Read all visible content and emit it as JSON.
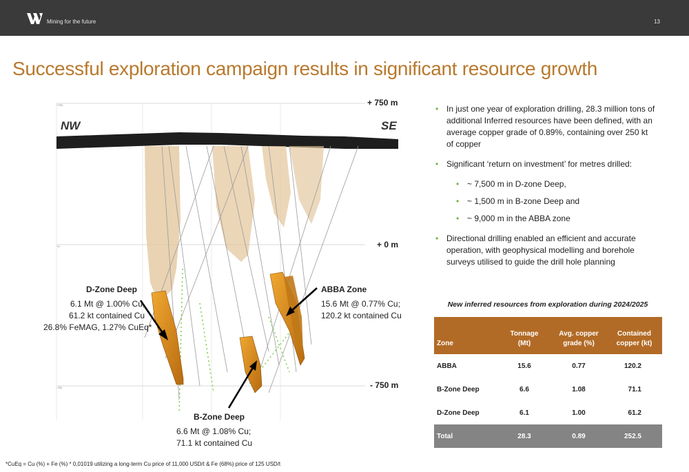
{
  "header": {
    "tagline": "Mining for the future",
    "page_number": "13"
  },
  "title": "Successful exploration campaign results in significant resource growth",
  "figure": {
    "direction_left": "NW",
    "direction_right": "SE",
    "elevation_top": "+ 750 m",
    "elevation_mid": "+ 0 m",
    "elevation_bottom": "- 750 m",
    "small_top": "+750",
    "small_mid": "+0",
    "small_bottom": "-750",
    "dzone": {
      "name": "D-Zone Deep",
      "line1": "6.1 Mt @ 1.00% Cu,",
      "line2": "61.2 kt contained Cu",
      "line3": "26.8% FeMAG, 1.27% CuEq*"
    },
    "abba": {
      "name": "ABBA Zone",
      "line1": "15.6 Mt @ 0.77% Cu;",
      "line2": "120.2 kt contained Cu"
    },
    "bzone": {
      "name": "B-Zone Deep",
      "line1": "6.6 Mt @ 1.08% Cu;",
      "line2": "71.1 kt contained Cu"
    }
  },
  "bullets": {
    "b1": "In just one year of exploration drilling, 28.3 million tons of additional Inferred resources have been defined, with an average copper grade of 0.89%, containing over 250 kt of copper",
    "b2": "Significant ‘return on investment’ for metres drilled:",
    "s1": "~ 7,500 m in D-zone Deep,",
    "s2": "~ 1,500 m in B-zone Deep and",
    "s3": "~ 9,000 m in the ABBA zone",
    "b3": "Directional drilling enabled an efficient and accurate operation, with geophysical modelling and borehole surveys utilised to guide the drill hole planning"
  },
  "table": {
    "caption": "New inferred resources from exploration during 2024/2025",
    "headers": {
      "zone": "Zone",
      "tonnage1": "Tonnage",
      "tonnage2": "(Mt)",
      "grade1": "Avg. copper",
      "grade2": "grade (%)",
      "copper1": "Contained",
      "copper2": "copper (kt)"
    },
    "rows": [
      {
        "zone": "ABBA",
        "tonnage": "15.6",
        "grade": "0.77",
        "copper": "120.2"
      },
      {
        "zone": "B-Zone Deep",
        "tonnage": "6.6",
        "grade": "1.08",
        "copper": "71.1"
      },
      {
        "zone": "D-Zone Deep",
        "tonnage": "6.1",
        "grade": "1.00",
        "copper": "61.2"
      },
      {
        "zone": "Total",
        "tonnage": "28.3",
        "grade": "0.89",
        "copper": "252.5"
      }
    ]
  },
  "footnote": "*CuEq = Cu (%) + Fe (%) * 0,01019 utilizing a long-term Cu price of 11,000 USD/t & Fe (68%) price of 125 USD/t",
  "colors": {
    "accent": "#b8792d",
    "table_header": "#b26b26",
    "bullet": "#6db33f",
    "ore": "#d98a1a"
  }
}
